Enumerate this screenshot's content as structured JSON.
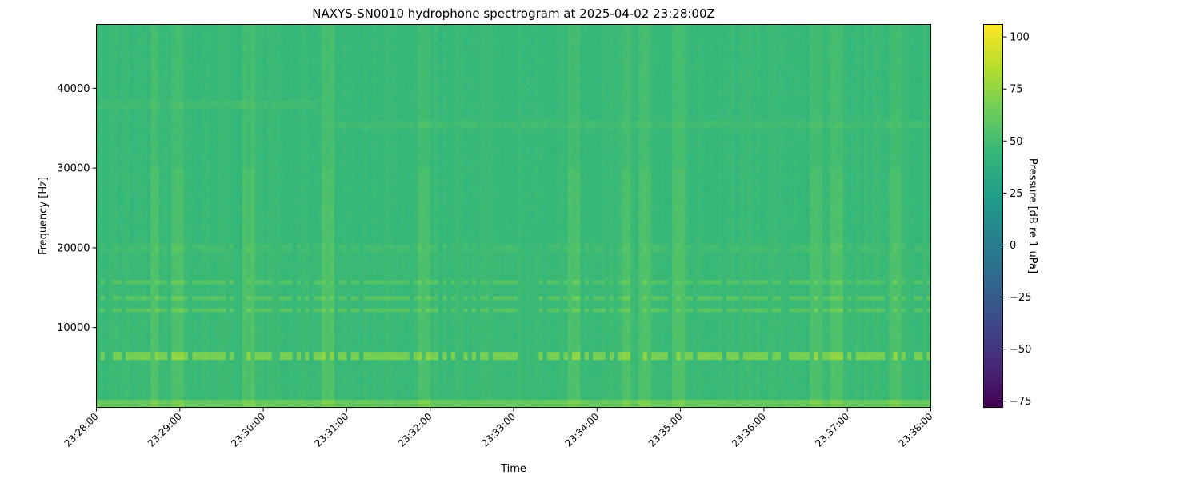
{
  "chart_data": {
    "type": "heatmap",
    "title": "NAXYS-SN0010 hydrophone spectrogram at 2025-04-02 23:28:00Z",
    "xlabel": "Time",
    "ylabel": "Frequency [Hz]",
    "colorbar_label": "Pressure [dB re 1 uPa]",
    "colormap": "viridis",
    "xlim": [
      "23:28:00",
      "23:38:00"
    ],
    "x_ticks": [
      "23:28:00",
      "23:29:00",
      "23:30:00",
      "23:31:00",
      "23:32:00",
      "23:33:00",
      "23:34:00",
      "23:35:00",
      "23:36:00",
      "23:37:00",
      "23:38:00"
    ],
    "ylim": [
      0,
      48000
    ],
    "y_ticks": [
      10000,
      20000,
      30000,
      40000
    ],
    "clim": [
      -78,
      106
    ],
    "colorbar_ticks": [
      -75,
      -50,
      -25,
      0,
      25,
      50,
      75,
      100
    ],
    "background_level_db": 46,
    "frequency_bands": [
      {
        "center_hz": 400,
        "width_hz": 900,
        "level_db": 62
      },
      {
        "center_hz": 6500,
        "width_hz": 700,
        "level_db": 68,
        "intermittent": true
      },
      {
        "center_hz": 12400,
        "width_hz": 400,
        "level_db": 57,
        "intermittent": true
      },
      {
        "center_hz": 13800,
        "width_hz": 400,
        "level_db": 57,
        "intermittent": true
      },
      {
        "center_hz": 15700,
        "width_hz": 700,
        "level_db": 56,
        "intermittent": true
      },
      {
        "center_hz": 20000,
        "width_hz": 500,
        "level_db": 50,
        "intermittent": true
      },
      {
        "center_hz": 35500,
        "width_hz": 600,
        "level_db": 49,
        "start": "23:30:45"
      },
      {
        "center_hz": 38000,
        "width_hz": 600,
        "level_db": 49,
        "end": "23:30:40"
      }
    ],
    "broadband_transients": [
      "23:28:42",
      "23:28:59",
      "23:29:49",
      "23:30:46",
      "23:31:56",
      "23:33:44",
      "23:34:21",
      "23:34:34",
      "23:34:58",
      "23:36:37",
      "23:36:53",
      "23:37:35"
    ],
    "grid": false
  }
}
